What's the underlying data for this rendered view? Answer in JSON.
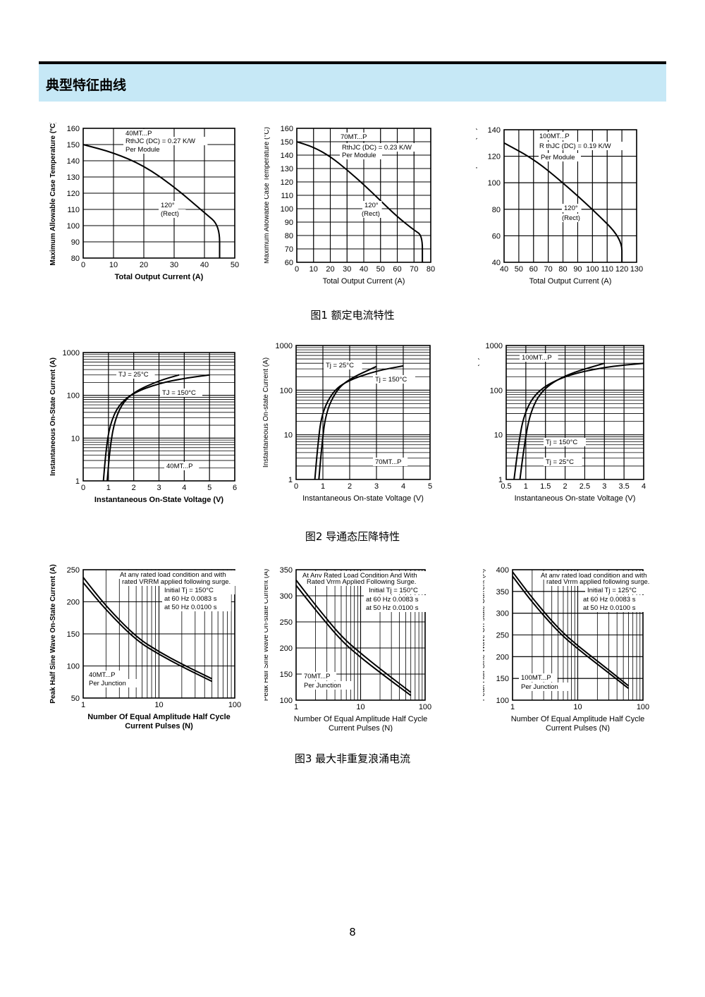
{
  "header": {
    "title": "典型特征曲线"
  },
  "captions": {
    "fig1": "图1 额定电流特性",
    "fig2": "图2 导通态压降特性",
    "fig3": "图3 最大非重复浪涌电流"
  },
  "page_number": "8",
  "colors": {
    "header_bg": "#c6e8f6",
    "ink": "#000000"
  },
  "chart_data": [
    {
      "id": "c11",
      "type": "line",
      "scale": "linear",
      "xlabel": "Total Output Current (A)",
      "ylabel": "Maximum Allowable Case Temperature (°C)",
      "xlim": [
        0,
        50
      ],
      "ylim": [
        80,
        160
      ],
      "xticks": [
        0,
        10,
        20,
        30,
        40,
        50
      ],
      "yticks": [
        80,
        90,
        100,
        110,
        120,
        130,
        140,
        150,
        160
      ],
      "annotations": [
        "40MT...P",
        "RthJC (DC) = 0.27 K/W",
        "Per Module",
        "120°",
        "(Rect)"
      ],
      "series": [
        {
          "values": [
            [
              0,
              150
            ],
            [
              10,
              145
            ],
            [
              20,
              137
            ],
            [
              30,
              124
            ],
            [
              40,
              108
            ],
            [
              45,
              100
            ],
            [
              45,
              80
            ]
          ]
        }
      ]
    },
    {
      "id": "c12",
      "type": "line",
      "scale": "linear",
      "xlabel": "Total Output Current (A)",
      "ylabel": "Maximum Allowable Case Temperature (°C)",
      "xlim": [
        0,
        80
      ],
      "ylim": [
        60,
        160
      ],
      "xticks": [
        0,
        10,
        20,
        30,
        40,
        50,
        60,
        70,
        80
      ],
      "yticks": [
        60,
        70,
        80,
        90,
        100,
        110,
        120,
        130,
        140,
        150,
        160
      ],
      "annotations": [
        "70MT...P",
        "RthJC (DC) = 0.23 K/W",
        "Per Module",
        "120°",
        "(Rect)"
      ],
      "series": [
        {
          "values": [
            [
              0,
              150
            ],
            [
              10,
              146
            ],
            [
              20,
              139
            ],
            [
              30,
              129
            ],
            [
              40,
              118
            ],
            [
              50,
              106
            ],
            [
              60,
              94
            ],
            [
              70,
              84
            ],
            [
              75,
              80
            ],
            [
              75,
              60
            ]
          ]
        }
      ]
    },
    {
      "id": "c13",
      "type": "line",
      "scale": "linear",
      "xlabel": "Total Output Current (A)",
      "ylabel": "Maximum Allowable Case Temperature (°C)",
      "xlim": [
        40,
        130
      ],
      "ylim": [
        40,
        140
      ],
      "xticks": [
        40,
        50,
        60,
        70,
        80,
        90,
        100,
        110,
        120,
        130
      ],
      "yticks": [
        40,
        60,
        80,
        100,
        120,
        140
      ],
      "annotations": [
        "100MT...P",
        "R thJC (DC) = 0.19 K/W",
        "Per Module",
        "120°",
        "(Rect)"
      ],
      "series": [
        {
          "values": [
            [
              40,
              130
            ],
            [
              60,
              118
            ],
            [
              80,
              100
            ],
            [
              100,
              80
            ],
            [
              120,
              58
            ],
            [
              120,
              40
            ]
          ]
        }
      ]
    },
    {
      "id": "c21",
      "type": "line",
      "scale": "semilogy",
      "xlabel": "Instantaneous On-State Voltage (V)",
      "ylabel": "Instantaneous On-State Current (A)",
      "xlim": [
        0,
        6
      ],
      "ylim": [
        1,
        1000
      ],
      "xticks": [
        0,
        1,
        2,
        3,
        4,
        5,
        6
      ],
      "yticks": [
        1,
        10,
        100,
        1000
      ],
      "annotations": [
        "TJ = 25°C",
        "TJ = 150°C",
        "40MT...P"
      ],
      "series": [
        {
          "name": "TJ = 25°C",
          "values": [
            [
              0.95,
              1
            ],
            [
              1.05,
              5
            ],
            [
              1.2,
              20
            ],
            [
              1.5,
              60
            ],
            [
              2,
              120
            ],
            [
              3,
              220
            ],
            [
              3.8,
              300
            ]
          ]
        },
        {
          "name": "TJ = 150°C",
          "values": [
            [
              0.8,
              1
            ],
            [
              0.9,
              5
            ],
            [
              1.05,
              20
            ],
            [
              1.4,
              60
            ],
            [
              2,
              115
            ],
            [
              3,
              190
            ],
            [
              4,
              250
            ],
            [
              5,
              300
            ]
          ]
        }
      ]
    },
    {
      "id": "c22",
      "type": "line",
      "scale": "semilogy",
      "xlabel": "Instantaneous On-state Voltage (V)",
      "ylabel": "Instantaneous On-state Current (A)",
      "xlim": [
        0,
        5
      ],
      "ylim": [
        1,
        1000
      ],
      "xticks": [
        0,
        1,
        2,
        3,
        4,
        5
      ],
      "yticks": [
        1,
        10,
        100,
        1000
      ],
      "annotations": [
        "Tj = 25°C",
        "Tj = 150°C",
        "70MT...P"
      ],
      "series": [
        {
          "name": "Tj = 25°C",
          "values": [
            [
              0.85,
              1
            ],
            [
              0.95,
              5
            ],
            [
              1.1,
              30
            ],
            [
              1.5,
              100
            ],
            [
              2,
              180
            ],
            [
              3,
              340
            ]
          ]
        },
        {
          "name": "Tj = 150°C",
          "values": [
            [
              0.7,
              1
            ],
            [
              0.8,
              5
            ],
            [
              0.95,
              30
            ],
            [
              1.4,
              100
            ],
            [
              2,
              170
            ],
            [
              3,
              270
            ],
            [
              4,
              350
            ]
          ]
        }
      ]
    },
    {
      "id": "c23",
      "type": "line",
      "scale": "semilogy",
      "xlabel": "Instantaneous On-state Voltage (V)",
      "ylabel": "Instantaneous On-state Current (A)",
      "xlim": [
        0.5,
        4
      ],
      "ylim": [
        1,
        1000
      ],
      "xticks": [
        0.5,
        1,
        1.5,
        2,
        2.5,
        3,
        3.5,
        4
      ],
      "yticks": [
        1,
        10,
        100,
        1000
      ],
      "annotations": [
        "100MT...P",
        "Tj = 150°C",
        "Tj = 25°C"
      ],
      "series": [
        {
          "name": "Tj = 25°C",
          "values": [
            [
              0.85,
              1
            ],
            [
              0.95,
              5
            ],
            [
              1.1,
              30
            ],
            [
              1.4,
              100
            ],
            [
              2,
              220
            ],
            [
              3,
              400
            ]
          ]
        },
        {
          "name": "Tj = 150°C",
          "values": [
            [
              0.7,
              1
            ],
            [
              0.8,
              5
            ],
            [
              0.95,
              30
            ],
            [
              1.3,
              100
            ],
            [
              2,
              210
            ],
            [
              3,
              330
            ],
            [
              4,
              400
            ]
          ]
        }
      ]
    },
    {
      "id": "c31",
      "type": "line",
      "scale": "semilogx",
      "xlabel": "Number Of Equal Amplitude Half Cycle Current Pulses (N)",
      "ylabel": "Peak Half Sine Wave On-State Current (A)",
      "xlim": [
        1,
        100
      ],
      "ylim": [
        50,
        250
      ],
      "xticks": [
        1,
        10,
        100
      ],
      "yticks": [
        50,
        100,
        150,
        200,
        250
      ],
      "annotations": [
        "At any rated load condition and with",
        "rated VRRM applied following surge.",
        "Initial Tj = 150°C",
        "at 60 Hz 0.0083 s",
        "at 50 Hz 0.0100 s",
        "40MT...P",
        "Per Junction"
      ],
      "series": [
        {
          "name": "at 60 Hz 0.0083 s",
          "values": [
            [
              1,
              238
            ],
            [
              2,
              193
            ],
            [
              5,
              145
            ],
            [
              10,
              122
            ],
            [
              20,
              103
            ],
            [
              50,
              80
            ]
          ]
        },
        {
          "name": "at 50 Hz 0.0100 s",
          "values": [
            [
              1,
              230
            ],
            [
              2,
              187
            ],
            [
              5,
              140
            ],
            [
              10,
              118
            ],
            [
              20,
              99
            ],
            [
              50,
              76
            ]
          ]
        }
      ]
    },
    {
      "id": "c32",
      "type": "line",
      "scale": "semilogx",
      "xlabel": "Number Of Equal Amplitude Half Cycle Current Pulses (N)",
      "ylabel": "Peak Half Sine Wave On-state Current (A)",
      "xlim": [
        1,
        100
      ],
      "ylim": [
        100,
        350
      ],
      "xticks": [
        1,
        10,
        100
      ],
      "yticks": [
        100,
        150,
        200,
        250,
        300,
        350
      ],
      "annotations": [
        "At Any Rated Load Condition And With",
        "Rated Vrrm Applied Following Surge.",
        "Initial Tj = 150°C",
        "at 60 Hz 0.0083 s",
        "at 50 Hz 0.0100 s",
        "70MT...P",
        "Per Junction"
      ],
      "series": [
        {
          "name": "at 60 Hz 0.0083 s",
          "values": [
            [
              1,
              330
            ],
            [
              2,
              282
            ],
            [
              5,
              222
            ],
            [
              10,
              190
            ],
            [
              20,
              160
            ],
            [
              60,
              115
            ]
          ]
        },
        {
          "name": "at 50 Hz 0.0100 s",
          "values": [
            [
              1,
              320
            ],
            [
              2,
              273
            ],
            [
              5,
              214
            ],
            [
              10,
              182
            ],
            [
              20,
              153
            ],
            [
              60,
              109
            ]
          ]
        }
      ]
    },
    {
      "id": "c33",
      "type": "line",
      "scale": "semilogx",
      "xlabel": "Number Of Equal Amplitude Half Cycle Current Pulses (N)",
      "ylabel": "Peak Half Sine Wave On-state Current (A)",
      "xlim": [
        1,
        100
      ],
      "ylim": [
        100,
        400
      ],
      "xticks": [
        1,
        10,
        100
      ],
      "yticks": [
        100,
        150,
        200,
        250,
        300,
        350,
        400
      ],
      "annotations": [
        "At any rated load condition and with",
        "rated Vrrm applied following surge.",
        "Initial Tj = 125°C",
        "at 60 Hz 0.0083 s",
        "at 50 Hz 0.0100 s",
        "100MT...P",
        "Per Junction"
      ],
      "series": [
        {
          "name": "at 60 Hz 0.0083 s",
          "values": [
            [
              1,
              395
            ],
            [
              2,
              335
            ],
            [
              5,
              265
            ],
            [
              10,
              225
            ],
            [
              20,
              190
            ],
            [
              60,
              133
            ]
          ]
        },
        {
          "name": "at 50 Hz 0.0100 s",
          "values": [
            [
              1,
              385
            ],
            [
              2,
              325
            ],
            [
              5,
              257
            ],
            [
              10,
              218
            ],
            [
              20,
              183
            ],
            [
              60,
              127
            ]
          ]
        }
      ]
    }
  ]
}
